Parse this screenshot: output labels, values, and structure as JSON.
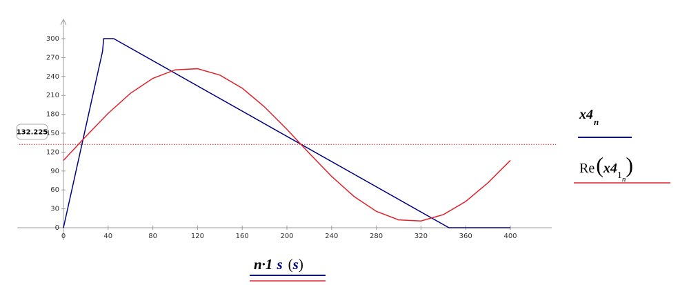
{
  "chart_data": {
    "type": "line",
    "x_label": {
      "expr": "n·1",
      "unit": "s",
      "unit_paren": "s"
    },
    "series": [
      {
        "name": "x4",
        "subscript": "n",
        "color": "#000080",
        "x": [
          0,
          35,
          36,
          45,
          345,
          400
        ],
        "values": [
          0,
          280,
          300,
          300,
          0,
          0
        ]
      },
      {
        "name": "Re",
        "arg": "x4",
        "subscript": "1",
        "subsubscript": "n",
        "color": "#e0202a",
        "x": [
          0,
          20,
          40,
          60,
          80,
          100,
          120,
          140,
          160,
          180,
          200,
          220,
          240,
          260,
          280,
          300,
          320,
          340,
          360,
          380,
          400
        ],
        "values": [
          106.8,
          144.8,
          181.5,
          213.3,
          237.0,
          250.5,
          252.3,
          242.2,
          221.4,
          191.6,
          156.2,
          118.1,
          81.5,
          49.7,
          26.0,
          12.5,
          10.7,
          20.8,
          41.6,
          71.4,
          106.8
        ]
      }
    ],
    "marker": 132.225,
    "marker_color": "#e0202a",
    "xlim": [
      0,
      400
    ],
    "xticks": [
      0,
      40,
      80,
      120,
      160,
      200,
      240,
      280,
      320,
      360,
      400
    ],
    "ylim": [
      0,
      300
    ],
    "yticks": [
      0,
      30,
      60,
      90,
      120,
      150,
      180,
      210,
      240,
      270,
      300
    ]
  }
}
